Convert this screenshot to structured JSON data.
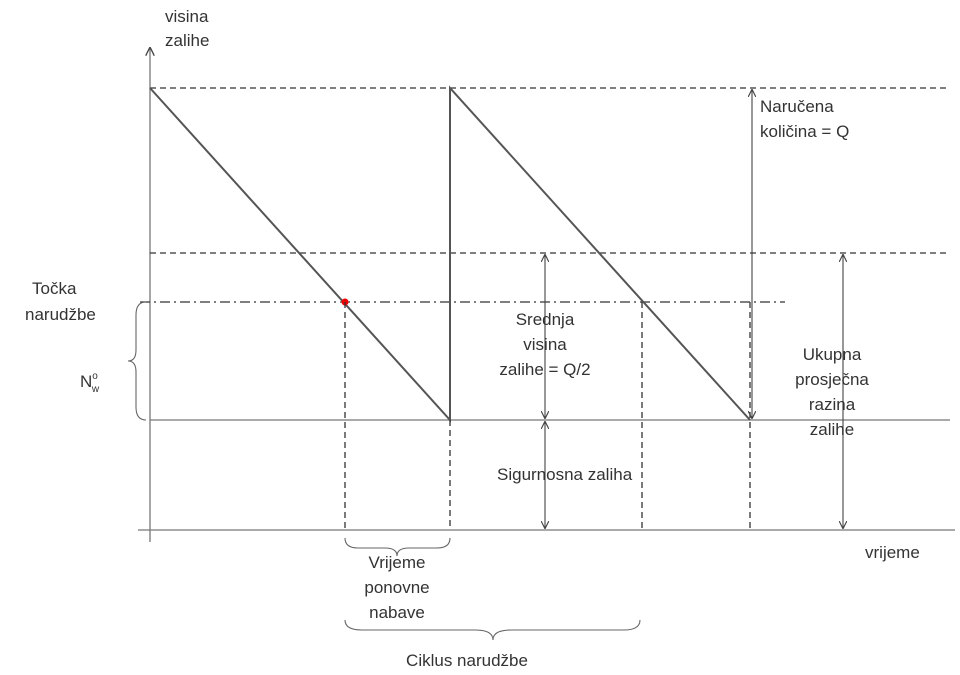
{
  "y_axis_label": [
    "visina",
    "zalihe"
  ],
  "x_axis_label": "vrijeme",
  "ordered_quantity": [
    "Naručena",
    "količina = Q"
  ],
  "reorder_point": [
    "Točka",
    "narudžbe"
  ],
  "reorder_symbol": {
    "main": "N",
    "sub": "w",
    "sup": "o"
  },
  "average_stock": [
    "Srednja",
    "visina",
    "zalihe = Q/2"
  ],
  "total_average": [
    "Ukupna",
    "prosječna",
    "razina",
    "zalihe"
  ],
  "safety_stock": "Sigurnosna zaliha",
  "lead_time": [
    "Vrijeme",
    "ponovne",
    "nabave"
  ],
  "order_cycle": "Ciklus narudžbe"
}
